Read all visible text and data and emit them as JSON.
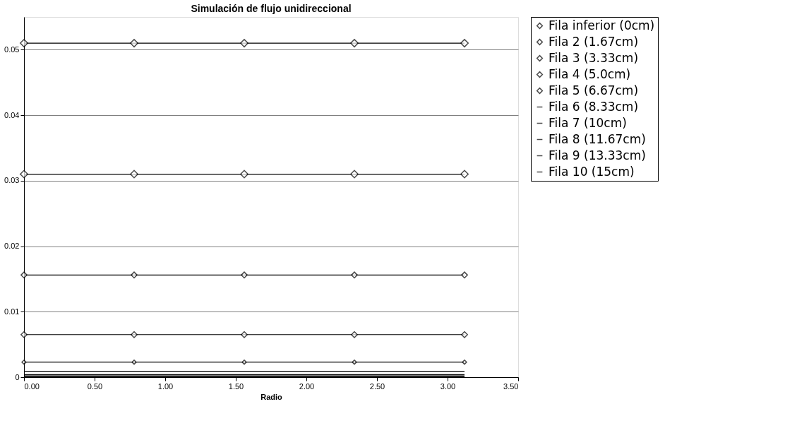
{
  "chart_data": {
    "type": "line",
    "title": "Simulación de flujo unidireccional",
    "xlabel": "Radio",
    "x": [
      0,
      0.78,
      1.56,
      2.34,
      3.12
    ],
    "series": [
      {
        "name": "Fila inferior (0cm)",
        "color": "#000000",
        "marker": "diamond",
        "values": [
          0.051,
          0.051,
          0.051,
          0.051,
          0.051
        ]
      },
      {
        "name": "Fila 2 (1.67cm)",
        "color": "#000000",
        "marker": "diamond",
        "values": [
          0.031,
          0.031,
          0.031,
          0.031,
          0.031
        ]
      },
      {
        "name": "Fila 3 (3.33cm)",
        "color": "#000000",
        "marker": "diamond",
        "values": [
          0.0156,
          0.0156,
          0.0156,
          0.0156,
          0.0156
        ]
      },
      {
        "name": "Fila 4 (5.0cm)",
        "color": "#000000",
        "marker": "diamond",
        "values": [
          0.0065,
          0.0065,
          0.0065,
          0.0065,
          0.0065
        ]
      },
      {
        "name": "Fila 5 (6.67cm)",
        "color": "#000000",
        "marker": "diamond",
        "values": [
          0.0023,
          0.0023,
          0.0023,
          0.0023,
          0.0023
        ]
      },
      {
        "name": "Fila 6 (8.33cm)",
        "color": "#000000",
        "marker": "none",
        "values": [
          0.0009,
          0.0009,
          0.0009,
          0.0009,
          0.0009
        ]
      },
      {
        "name": "Fila 7 (10cm)",
        "color": "#000000",
        "marker": "none",
        "values": [
          0.0004,
          0.0004,
          0.0004,
          0.0004,
          0.0004
        ]
      },
      {
        "name": "Fila 8 (11.67cm)",
        "color": "#000000",
        "marker": "none",
        "values": [
          0.0002,
          0.0002,
          0.0002,
          0.0002,
          0.0002
        ]
      },
      {
        "name": "Fila 9 (13.33cm)",
        "color": "#000000",
        "marker": "none",
        "values": [
          0.0001,
          0.0001,
          0.0001,
          0.0001,
          0.0001
        ]
      },
      {
        "name": "Fila 10 (15cm)",
        "color": "#000000",
        "marker": "none",
        "values": [
          0.0,
          0.0,
          0.0,
          0.0,
          0.0
        ]
      }
    ],
    "xlim": [
      0,
      3.5
    ],
    "xticks": [
      {
        "value": 0,
        "label": "0.00"
      },
      {
        "value": 0.5,
        "label": "0.50"
      },
      {
        "value": 1,
        "label": "1.00"
      },
      {
        "value": 1.5,
        "label": "1.50"
      },
      {
        "value": 2,
        "label": "2.00"
      },
      {
        "value": 2.5,
        "label": "2.50"
      },
      {
        "value": 3,
        "label": "3.00"
      },
      {
        "value": 3.5,
        "label": "3.50"
      }
    ],
    "ylim": [
      0,
      0.055
    ],
    "yticks": [
      0,
      0.01,
      0.02,
      0.03,
      0.04,
      0.05
    ],
    "grid": "y",
    "legend": "right",
    "line_style": "solid"
  }
}
